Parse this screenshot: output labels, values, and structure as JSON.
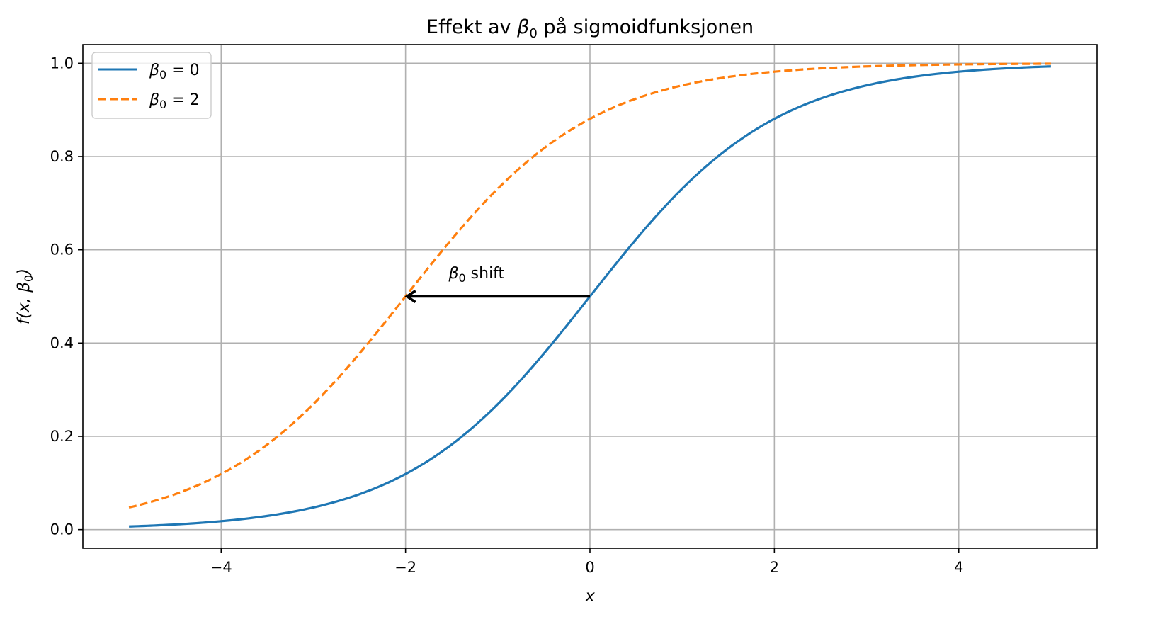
{
  "chart_data": {
    "type": "line",
    "title": {
      "prefix": "Effekt av ",
      "symbol": "β",
      "subscript": "0",
      "suffix": " på sigmoidfunksjonen"
    },
    "xlabel": "x",
    "ylabel": {
      "prefix": "f(x, ",
      "symbol": "β",
      "subscript": "0",
      "suffix": ")"
    },
    "xlim": [
      -5.5,
      5.5
    ],
    "ylim": [
      -0.04,
      1.04
    ],
    "xticks": [
      -4,
      -2,
      0,
      2,
      4
    ],
    "xtick_labels": [
      "−4",
      "−2",
      "0",
      "2",
      "4"
    ],
    "yticks": [
      0.0,
      0.2,
      0.4,
      0.6,
      0.8,
      1.0
    ],
    "ytick_labels": [
      "0.0",
      "0.2",
      "0.4",
      "0.6",
      "0.8",
      "1.0"
    ],
    "grid": true,
    "legend_position": "top-left",
    "series": [
      {
        "name": {
          "symbol": "β",
          "subscript": "0",
          "suffix": " = 0"
        },
        "color": "#1f77b4",
        "style": "solid",
        "beta0": 0,
        "x": [
          -5,
          -4.5,
          -4,
          -3.5,
          -3,
          -2.5,
          -2,
          -1.5,
          -1,
          -0.5,
          0,
          0.5,
          1,
          1.5,
          2,
          2.5,
          3,
          3.5,
          4,
          4.5,
          5
        ],
        "y": [
          0.0067,
          0.011,
          0.018,
          0.0293,
          0.0474,
          0.0759,
          0.1192,
          0.1824,
          0.2689,
          0.3775,
          0.5,
          0.6225,
          0.7311,
          0.8176,
          0.8808,
          0.9241,
          0.9526,
          0.9707,
          0.982,
          0.989,
          0.9933
        ]
      },
      {
        "name": {
          "symbol": "β",
          "subscript": "0",
          "suffix": " = 2"
        },
        "color": "#ff7f0e",
        "style": "dashed",
        "beta0": 2,
        "x": [
          -5,
          -4.5,
          -4,
          -3.5,
          -3,
          -2.5,
          -2,
          -1.5,
          -1,
          -0.5,
          0,
          0.5,
          1,
          1.5,
          2,
          2.5,
          3,
          3.5,
          4,
          4.5,
          5
        ],
        "y": [
          0.0474,
          0.0759,
          0.1192,
          0.1824,
          0.2689,
          0.3775,
          0.5,
          0.6225,
          0.7311,
          0.8176,
          0.8808,
          0.9241,
          0.9526,
          0.9707,
          0.982,
          0.989,
          0.9933,
          0.9959,
          0.9975,
          0.9985,
          0.9991
        ]
      }
    ],
    "annotations": [
      {
        "type": "arrow",
        "from": [
          0,
          0.5
        ],
        "to": [
          -2,
          0.5
        ],
        "color": "#000000",
        "text": {
          "symbol": "β",
          "subscript": "0",
          "suffix": " shift"
        },
        "text_at": [
          -1,
          0.53
        ]
      }
    ]
  }
}
